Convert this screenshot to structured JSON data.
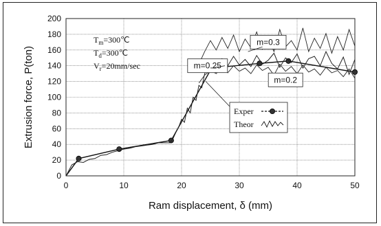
{
  "chart_data": {
    "type": "line",
    "xlabel": "Ram displacement, δ (mm)",
    "ylabel": "Extrusion force, P(ton)",
    "xlim": [
      0,
      50
    ],
    "ylim": [
      0,
      200
    ],
    "x_ticks": [
      0,
      10,
      20,
      30,
      40,
      50
    ],
    "y_ticks": [
      0,
      20,
      40,
      60,
      80,
      100,
      120,
      140,
      160,
      180,
      200
    ],
    "grid": true,
    "legend_position": "right-center",
    "annotations": {
      "conditions": [
        {
          "label": "T",
          "sub": "m",
          "value": "=300℃"
        },
        {
          "label": "T",
          "sub": "d",
          "value": "=300℃"
        },
        {
          "label": "V",
          "sub": "r",
          "value": "=20mm/sec"
        }
      ],
      "labels": [
        {
          "text": "m=0.3",
          "at": [
            35,
            170
          ]
        },
        {
          "text": "m=0.25",
          "at": [
            24.5,
            140
          ]
        },
        {
          "text": "m=0.2",
          "at": [
            38,
            122
          ]
        }
      ]
    },
    "series": [
      {
        "name": "Exper",
        "marker": "circle",
        "x": [
          0,
          2.2,
          9.2,
          18.2,
          25.2,
          33.5,
          38.5,
          50
        ],
        "y": [
          0,
          22,
          34,
          45,
          137,
          143,
          146,
          132
        ]
      },
      {
        "name": "Theor",
        "style": "wavy",
        "x": [
          0,
          1,
          2,
          3,
          4,
          5,
          6,
          7,
          8,
          9,
          10,
          11,
          12,
          13,
          14,
          15,
          16,
          17,
          18,
          18.5,
          19,
          19.5,
          20,
          20.5,
          21,
          21.5,
          22,
          22.5,
          23,
          23.5,
          24,
          24.5,
          25,
          26,
          27,
          28,
          29,
          30,
          31,
          32,
          33,
          34,
          35,
          36,
          37,
          38,
          39,
          40,
          41,
          42,
          43,
          44,
          45,
          46,
          47,
          48,
          49,
          50
        ],
        "y": [
          0,
          14,
          18,
          17,
          21,
          22,
          26,
          27,
          30,
          32,
          34,
          35,
          37,
          38,
          39,
          40,
          42,
          42,
          42,
          47,
          55,
          62,
          72,
          68,
          86,
          80,
          100,
          96,
          115,
          112,
          130,
          136,
          145,
          143,
          149,
          140,
          152,
          141,
          148,
          139,
          153,
          142,
          147,
          156,
          138,
          150,
          144,
          155,
          137,
          149,
          152,
          140,
          158,
          143,
          136,
          151,
          129,
          148
        ]
      },
      {
        "name": "m=0.3",
        "style": "wavy-band",
        "x": [
          23,
          24,
          25,
          26,
          27,
          28,
          29,
          30,
          31,
          32,
          33,
          34,
          35,
          36,
          37,
          38,
          39,
          40,
          41,
          42,
          43,
          44,
          45,
          46,
          47,
          48,
          49,
          50
        ],
        "y": [
          142,
          158,
          172,
          160,
          176,
          162,
          179,
          158,
          174,
          163,
          183,
          161,
          176,
          158,
          186,
          164,
          172,
          160,
          188,
          158,
          175,
          162,
          181,
          156,
          177,
          160,
          186,
          165
        ]
      },
      {
        "name": "m=0.2",
        "style": "wavy-band",
        "x": [
          23,
          24,
          25,
          26,
          27,
          28,
          29,
          30,
          31,
          32,
          33,
          34,
          35,
          36,
          37,
          38,
          39,
          40,
          41,
          42,
          43,
          44,
          45,
          46,
          47,
          48,
          49,
          50
        ],
        "y": [
          118,
          128,
          134,
          130,
          138,
          131,
          140,
          133,
          137,
          130,
          141,
          134,
          138,
          128,
          142,
          133,
          139,
          130,
          141,
          132,
          136,
          128,
          138,
          131,
          134,
          126,
          136,
          124
        ]
      }
    ]
  }
}
